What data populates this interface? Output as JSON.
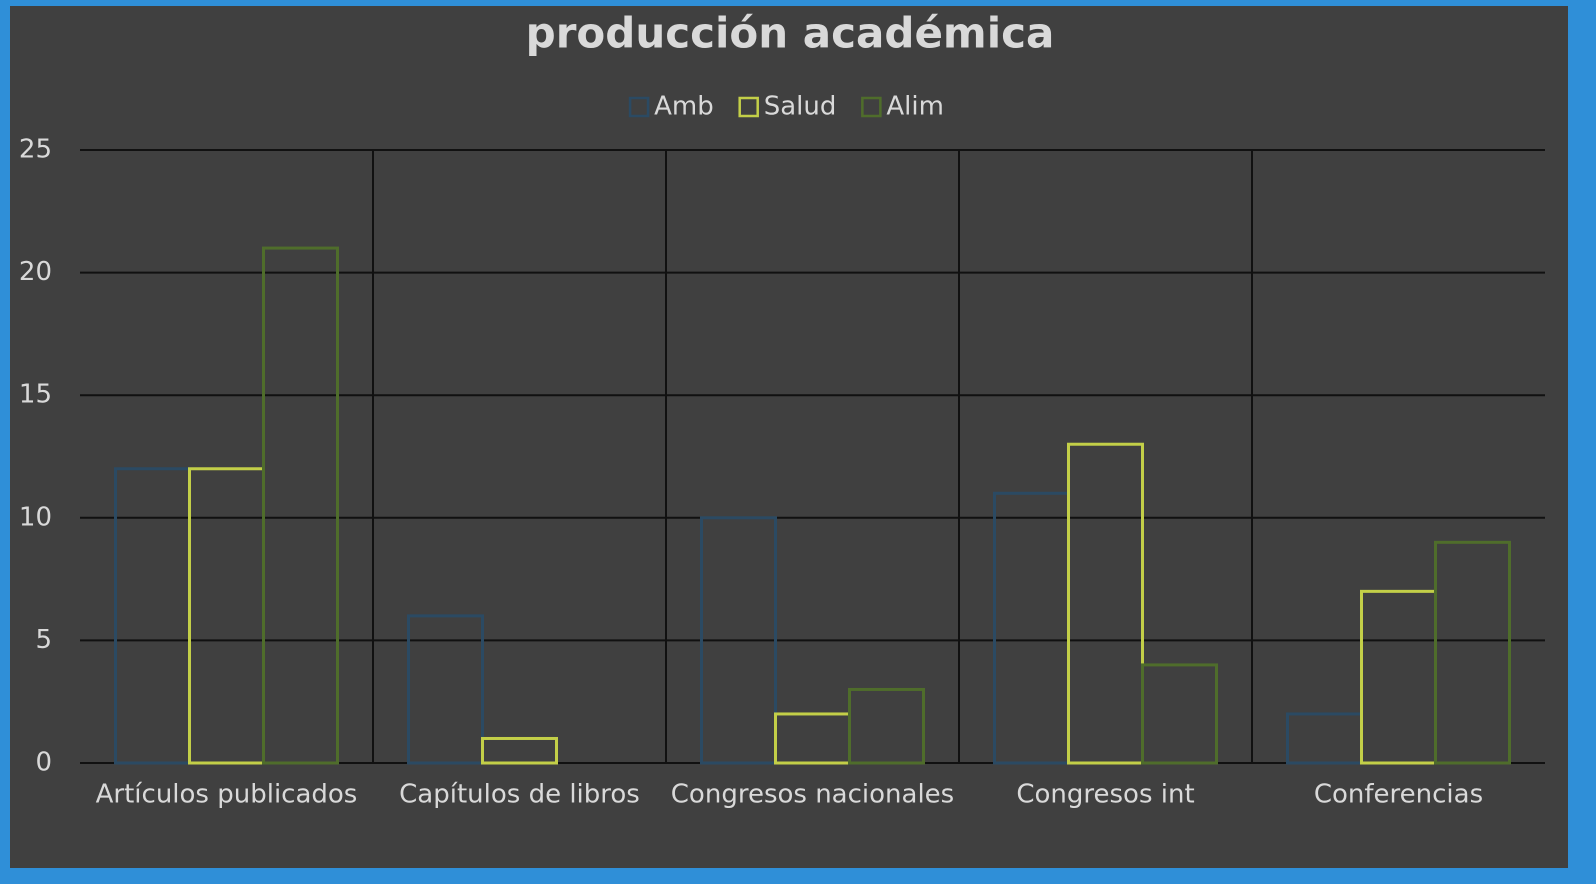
{
  "chart_data": {
    "type": "bar",
    "title": "producción académica",
    "categories": [
      "Artículos publicados",
      "Capítulos de libros",
      "Congresos nacionales",
      "Congresos int",
      "Conferencias"
    ],
    "series": [
      {
        "name": "Amb",
        "color": "#2b4a63",
        "values": [
          12,
          6,
          10,
          11,
          2
        ]
      },
      {
        "name": "Salud",
        "color": "#c3cf48",
        "values": [
          12,
          1,
          2,
          13,
          7
        ]
      },
      {
        "name": "Alim",
        "color": "#4f6d2b",
        "values": [
          21,
          0,
          3,
          4,
          9
        ]
      }
    ],
    "ylim": [
      0,
      25
    ],
    "yticks": [
      0,
      5,
      10,
      15,
      20,
      25
    ],
    "grid": true,
    "legend": "top"
  }
}
